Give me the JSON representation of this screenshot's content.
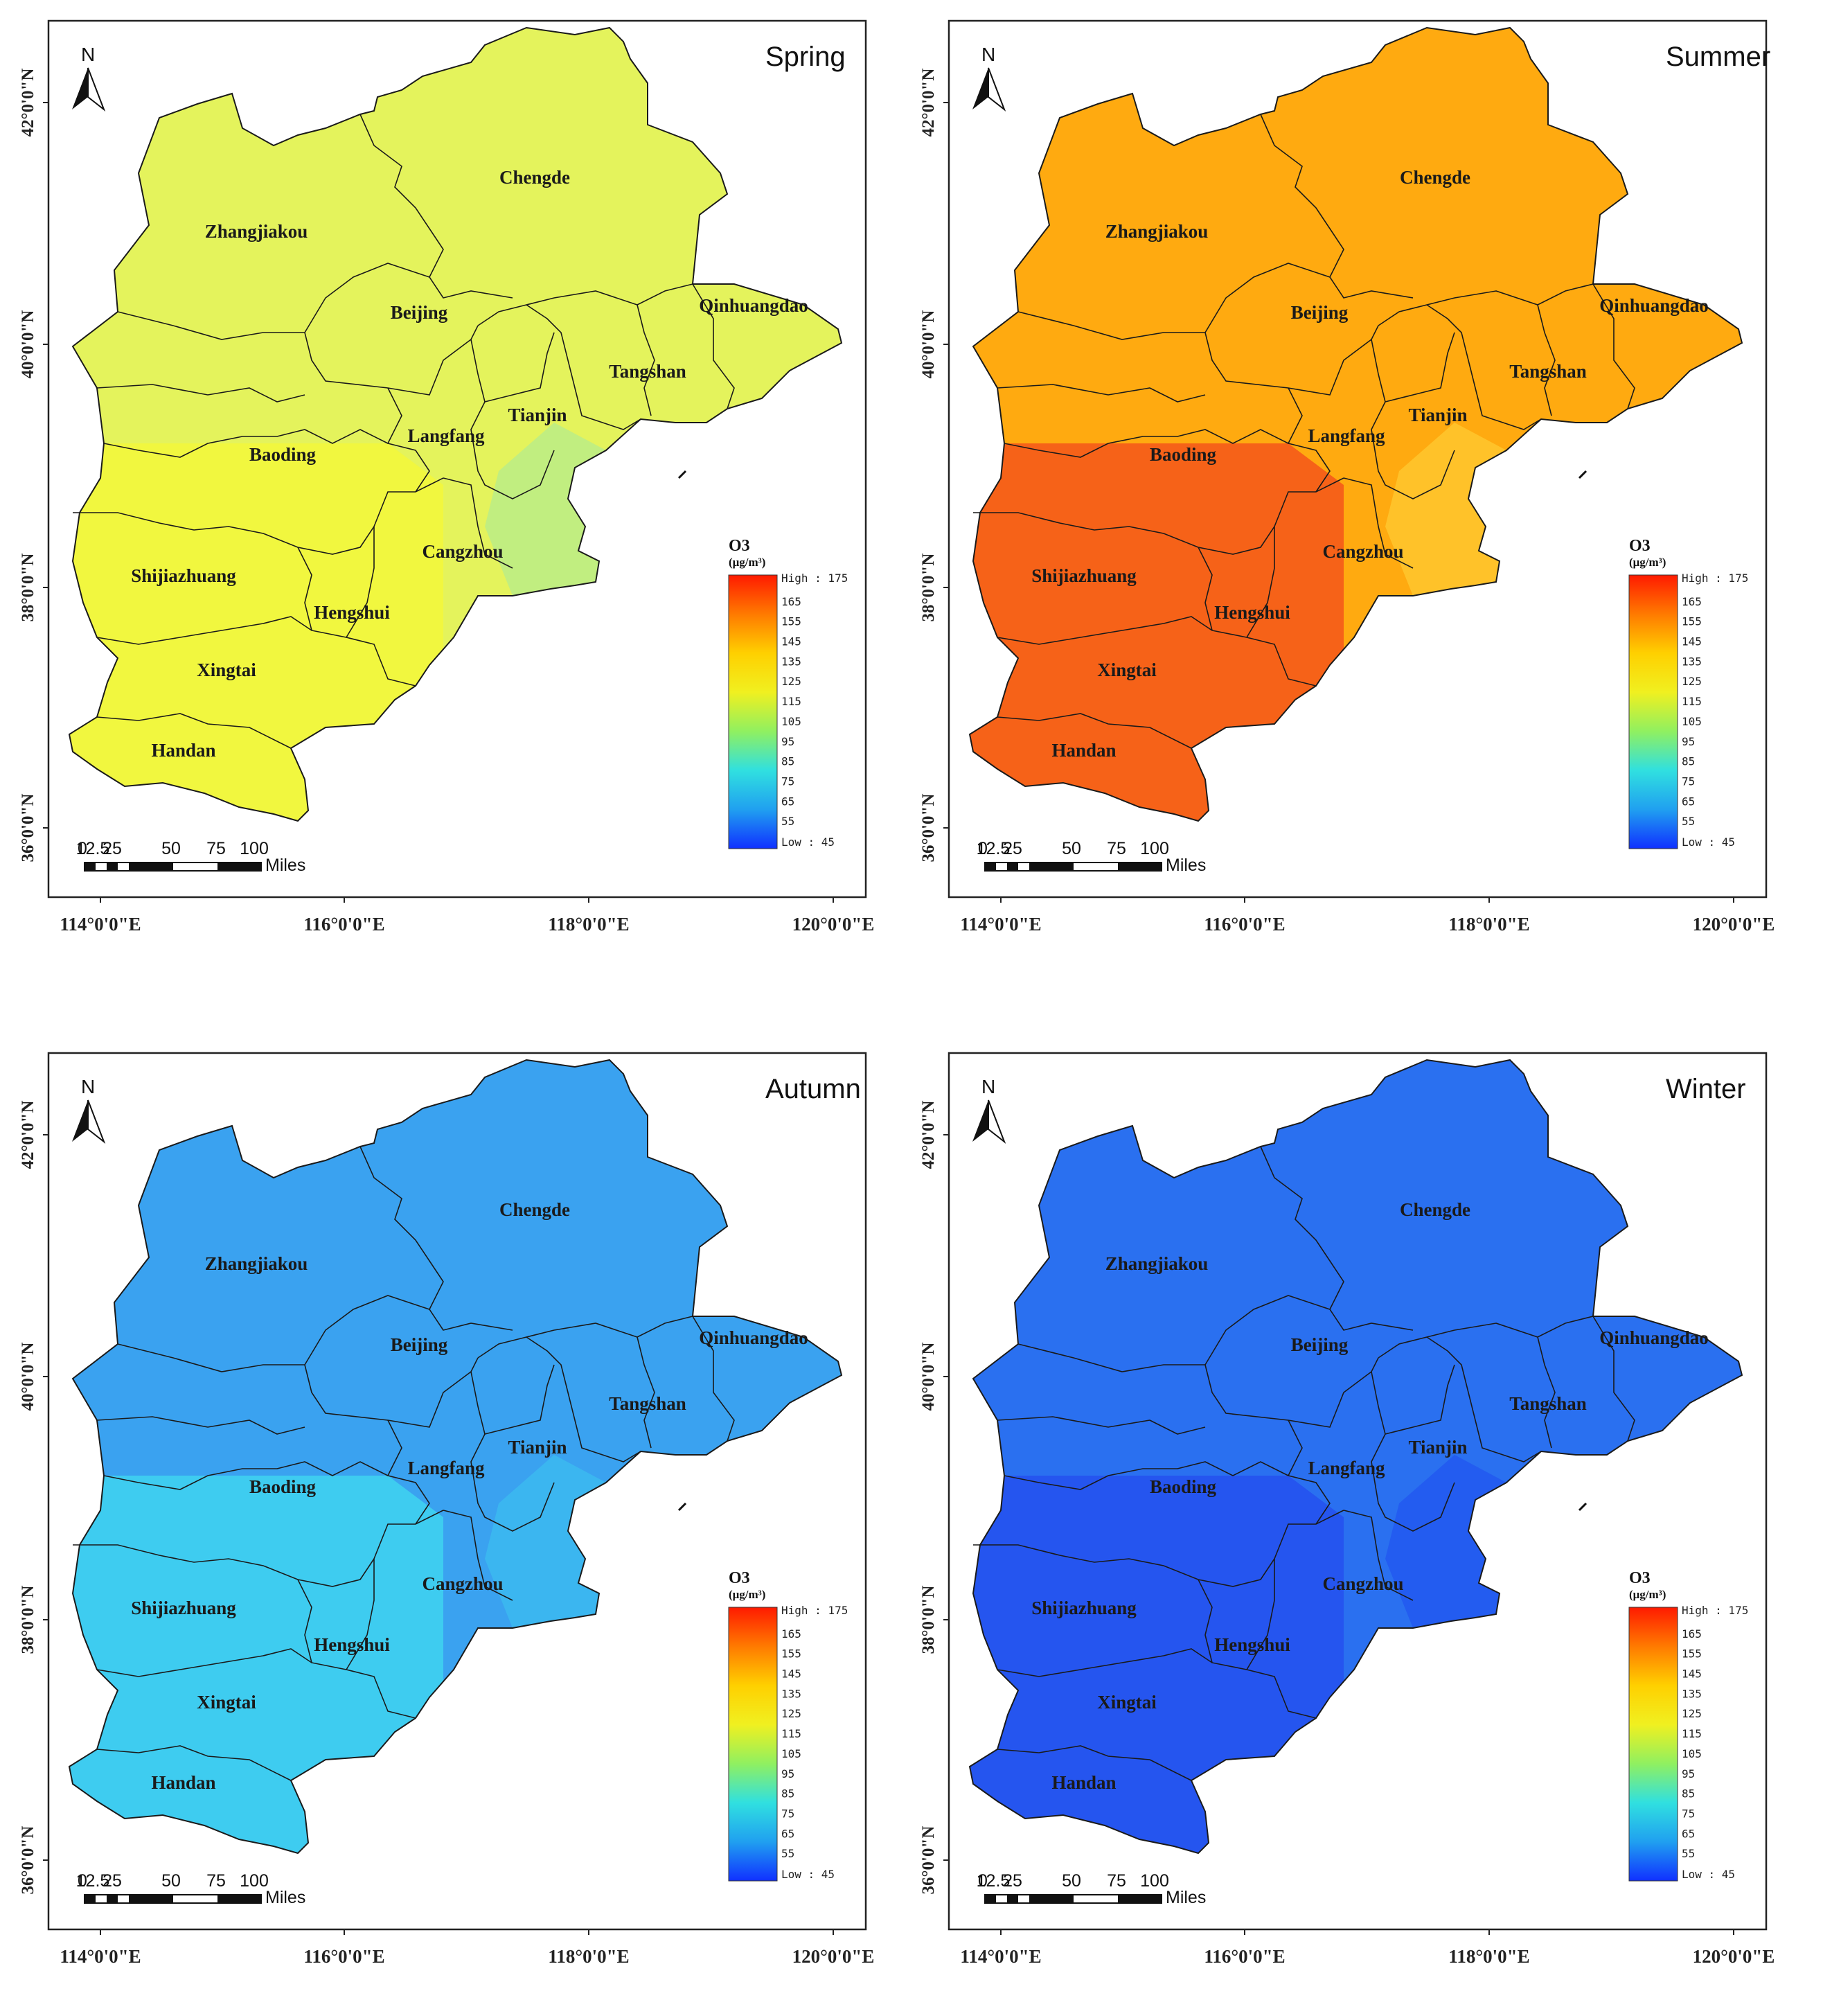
{
  "figure": {
    "panels": [
      {
        "season": "Spring",
        "fill_main": "#e4f35c",
        "fill_south": "#f3f73a",
        "fill_coast": "#b8ec8a"
      },
      {
        "season": "Summer",
        "fill_main": "#ffaa10",
        "fill_south": "#f5561a",
        "fill_coast": "#ffc830"
      },
      {
        "season": "Autumn",
        "fill_main": "#3aa2f0",
        "fill_south": "#40d4f0",
        "fill_coast": "#3cbcf0"
      },
      {
        "season": "Winter",
        "fill_main": "#2a70f0",
        "fill_south": "#2550ee",
        "fill_coast": "#2258f0"
      }
    ],
    "cities": [
      "Zhangjiakou",
      "Chengde",
      "Beijing",
      "Qinhuangdao",
      "Tangshan",
      "Tianjin",
      "Langfang",
      "Baoding",
      "Cangzhou",
      "Shijiazhuang",
      "Hengshui",
      "Xingtai",
      "Handan"
    ],
    "lat_labels": [
      "42°0'0\"N",
      "40°0'0\"N",
      "38°0'0\"N",
      "36°0'0\"N"
    ],
    "lon_labels": [
      "114°0'0\"E",
      "116°0'0\"E",
      "118°0'0\"E",
      "120°0'0\"E"
    ],
    "north_label": "N",
    "scale": {
      "ticks": [
        "0",
        "12.5",
        "25",
        "50",
        "75",
        "100"
      ],
      "unit": "Miles"
    },
    "legend": {
      "title": "O3",
      "unit": "(μg/m³)",
      "high_label": "High : 175",
      "low_label": "Low : 45",
      "ticks": [
        "165",
        "155",
        "145",
        "135",
        "125",
        "115",
        "105",
        "95",
        "85",
        "75",
        "65",
        "55"
      ],
      "gradient": [
        "#ff1a00",
        "#ff7a00",
        "#ffd000",
        "#f0f020",
        "#90f060",
        "#30e0e0",
        "#20a0f0",
        "#1030ff"
      ]
    }
  }
}
